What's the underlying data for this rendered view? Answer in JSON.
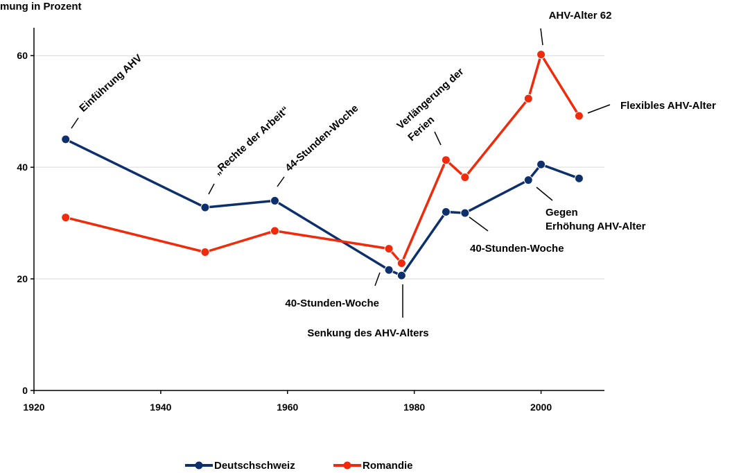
{
  "chart_data": {
    "type": "line",
    "title": "",
    "ylabel": "mung in Prozent",
    "xlabel": "",
    "xlim": [
      1920,
      2010
    ],
    "ylim": [
      0,
      65
    ],
    "xticks": [
      1920,
      1940,
      1960,
      1980,
      2000
    ],
    "yticks": [
      0,
      20,
      40,
      60
    ],
    "grid": "horizontal",
    "legend": "bottom",
    "series": [
      {
        "name": "Deutschschweiz",
        "color": "#0d2f6b",
        "points": [
          [
            1925,
            45.0
          ],
          [
            1947,
            32.8
          ],
          [
            1958,
            34.0
          ],
          [
            1976,
            21.6
          ],
          [
            1978,
            20.6
          ],
          [
            1985,
            32.0
          ],
          [
            1988,
            31.8
          ],
          [
            1998,
            37.7
          ],
          [
            2000,
            40.5
          ],
          [
            2006,
            38.0
          ]
        ]
      },
      {
        "name": "Romandie",
        "color": "#f02a0a",
        "points": [
          [
            1925,
            31.0
          ],
          [
            1947,
            24.8
          ],
          [
            1958,
            28.6
          ],
          [
            1976,
            25.4
          ],
          [
            1978,
            22.8
          ],
          [
            1985,
            41.3
          ],
          [
            1988,
            38.2
          ],
          [
            1998,
            52.3
          ],
          [
            2000,
            60.2
          ],
          [
            2006,
            49.2
          ]
        ]
      }
    ],
    "annotations": [
      {
        "text": "Einführung AHV",
        "x": 1925,
        "y": 45.0,
        "rotate": true
      },
      {
        "text": "„Rechte der Arbeit“",
        "x": 1947,
        "y": 32.8,
        "rotate": true
      },
      {
        "text": "44-Stunden-Woche",
        "x": 1958,
        "y": 34.0,
        "rotate": true
      },
      {
        "text": "Verlängerung der",
        "x": 1985,
        "y": 41.3,
        "rotate": true
      },
      {
        "text": "Ferien",
        "x": 1985,
        "y": 41.3,
        "rotate": true
      },
      {
        "text": "AHV-Alter 62",
        "x": 2000,
        "y": 60.2,
        "rotate": false
      },
      {
        "text": "Flexibles AHV-Alter",
        "x": 2006,
        "y": 49.2,
        "rotate": false
      },
      {
        "text": "Gegen",
        "x": 1998,
        "y": 37.7,
        "rotate": false
      },
      {
        "text": "Erhöhung AHV-Alter",
        "x": 1998,
        "y": 37.7,
        "rotate": false
      },
      {
        "text": "40-Stunden-Woche",
        "x": 1988,
        "y": 31.8,
        "rotate": false
      },
      {
        "text": "40-Stunden-Woche",
        "x": 1976,
        "y": 21.6,
        "rotate": false
      },
      {
        "text": "Senkung des AHV-Alters",
        "x": 1978,
        "y": 20.6,
        "rotate": false
      }
    ]
  }
}
